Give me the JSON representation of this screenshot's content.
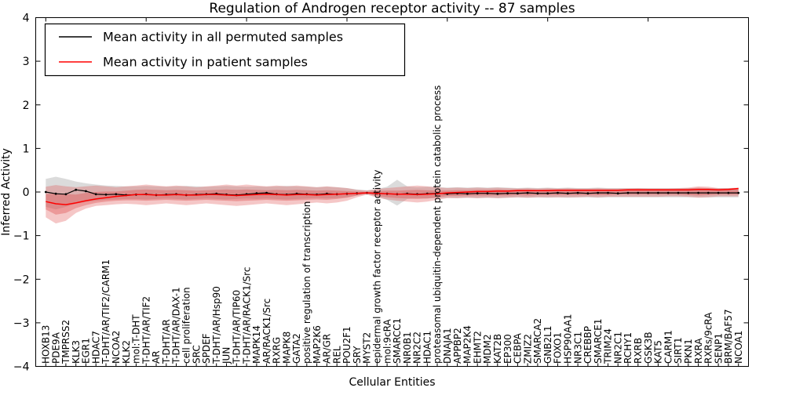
{
  "chart_data": {
    "type": "line",
    "title": "Regulation of Androgen receptor activity -- 87 samples",
    "xlabel": "Cellular Entities",
    "ylabel": "Inferred Activity",
    "ylim": [
      -4,
      4
    ],
    "yticks": [
      -4,
      -3,
      -2,
      -1,
      0,
      1,
      2,
      3,
      4
    ],
    "ytick_labels": [
      "−4",
      "−3",
      "−2",
      "−1",
      "0",
      "1",
      "2",
      "3",
      "4"
    ],
    "top_tick_positions": [
      0,
      10,
      20,
      30,
      40,
      50,
      60,
      70
    ],
    "grid": false,
    "legend_position": "upper-left",
    "legend": [
      {
        "label": "Mean activity in all permuted samples",
        "color": "#000000"
      },
      {
        "label": "Mean activity in patient samples",
        "color": "#ff0000"
      }
    ],
    "colors": {
      "permuted_line": "#000000",
      "patient_line": "#ff0000",
      "gray_band": "#999999",
      "red_band": "#dd4444"
    },
    "categories": [
      "HOXB13",
      "PDE9A",
      "TMPRSS2",
      "KLK3",
      "EGR1",
      "HDAC7",
      "T-DHT/AR/TIF2/CARM1",
      "NCOA2",
      "KLK2",
      "mol:T-DHT",
      "T-DHT/AR/TIF2",
      "AR",
      "T-DHT/AR",
      "T-DHT/AR/DAX-1",
      "cell proliferation",
      "SRC",
      "SPDEF",
      "T-DHT/AR/Hsp90",
      "JUN",
      "T-DHT/AR/TIP60",
      "T-DHT/AR/RACK1/Src",
      "MAPK14",
      "AR/RACK1/Src",
      "RXRG",
      "MAPK8",
      "GATA2",
      "positive regulation of transcription",
      "MAP2K6",
      "AR/GR",
      "REL",
      "POU2F1",
      "SRY",
      "MYST2",
      "epidermal growth factor receptor activity",
      "mol:9cRA",
      "SMARCC1",
      "NR0B1",
      "NR2C2",
      "HDAC1",
      "proteasomal ubiquitin-dependent protein catabolic process",
      "DNAJA1",
      "APPBP2",
      "MAP2K4",
      "EHMT2",
      "MDM2",
      "KAT2B",
      "EP300",
      "CEBPA",
      "ZMIZ2",
      "SMARCA2",
      "GNB2L1",
      "FOXO1",
      "HSP90AA1",
      "NR3C1",
      "CREBBP",
      "SMARCE1",
      "TRIM24",
      "NR2C1",
      "RCHY1",
      "RXRB",
      "GSK3B",
      "KAT5",
      "CARM1",
      "SIRT1",
      "PKN1",
      "RXRA",
      "RXRs/9cRA",
      "SENP1",
      "BRM/BAF57",
      "NCOA1"
    ],
    "series": [
      {
        "name": "Mean activity in all permuted samples",
        "values": [
          0.0,
          -0.04,
          -0.05,
          0.05,
          0.02,
          -0.05,
          -0.06,
          -0.05,
          -0.07,
          -0.06,
          -0.05,
          -0.07,
          -0.06,
          -0.05,
          -0.07,
          -0.06,
          -0.05,
          -0.04,
          -0.06,
          -0.07,
          -0.05,
          -0.03,
          -0.02,
          -0.05,
          -0.06,
          -0.04,
          -0.05,
          -0.06,
          -0.04,
          -0.05,
          -0.04,
          -0.03,
          -0.02,
          -0.03,
          -0.04,
          -0.05,
          -0.04,
          -0.05,
          -0.04,
          -0.03,
          -0.04,
          -0.03,
          -0.04,
          -0.03,
          -0.03,
          -0.04,
          -0.03,
          -0.03,
          -0.02,
          -0.03,
          -0.03,
          -0.02,
          -0.03,
          -0.02,
          -0.03,
          -0.02,
          -0.02,
          -0.03,
          -0.02,
          -0.02,
          -0.02,
          -0.02,
          -0.02,
          -0.02,
          -0.02,
          -0.02,
          -0.02,
          -0.02,
          -0.02,
          -0.02
        ]
      },
      {
        "name": "Mean activity in patient samples",
        "values": [
          -0.22,
          -0.27,
          -0.29,
          -0.25,
          -0.2,
          -0.16,
          -0.13,
          -0.1,
          -0.08,
          -0.06,
          -0.06,
          -0.07,
          -0.07,
          -0.06,
          -0.07,
          -0.07,
          -0.06,
          -0.06,
          -0.07,
          -0.08,
          -0.07,
          -0.06,
          -0.05,
          -0.06,
          -0.07,
          -0.06,
          -0.06,
          -0.07,
          -0.06,
          -0.05,
          -0.04,
          -0.03,
          -0.02,
          -0.03,
          -0.04,
          -0.05,
          -0.05,
          -0.06,
          -0.05,
          -0.04,
          -0.02,
          -0.01,
          0.0,
          0.01,
          0.01,
          0.02,
          0.02,
          0.03,
          0.03,
          0.03,
          0.03,
          0.04,
          0.04,
          0.04,
          0.04,
          0.04,
          0.04,
          0.04,
          0.05,
          0.05,
          0.05,
          0.05,
          0.05,
          0.05,
          0.05,
          0.06,
          0.06,
          0.05,
          0.06,
          0.08
        ]
      }
    ],
    "bands": [
      {
        "name": "permuted-std-band",
        "color": "#999999",
        "opacity": 0.35,
        "high": [
          0.3,
          0.35,
          0.3,
          0.24,
          0.2,
          0.17,
          0.15,
          0.14,
          0.13,
          0.13,
          0.14,
          0.13,
          0.12,
          0.13,
          0.14,
          0.13,
          0.12,
          0.13,
          0.14,
          0.13,
          0.12,
          0.13,
          0.12,
          0.13,
          0.14,
          0.13,
          0.12,
          0.11,
          0.12,
          0.11,
          0.09,
          0.06,
          0.04,
          0.07,
          0.12,
          0.28,
          0.13,
          0.11,
          0.12,
          0.11,
          0.1,
          0.11,
          0.1,
          0.11,
          0.1,
          0.11,
          0.1,
          0.09,
          0.1,
          0.09,
          0.1,
          0.09,
          0.1,
          0.09,
          0.09,
          0.1,
          0.09,
          0.09,
          0.09,
          0.09,
          0.09,
          0.09,
          0.09,
          0.09,
          0.09,
          0.09,
          0.09,
          0.09,
          0.09,
          0.09
        ],
        "low": [
          -0.34,
          -0.4,
          -0.34,
          -0.27,
          -0.23,
          -0.2,
          -0.18,
          -0.17,
          -0.16,
          -0.16,
          -0.17,
          -0.16,
          -0.15,
          -0.16,
          -0.17,
          -0.16,
          -0.15,
          -0.16,
          -0.17,
          -0.16,
          -0.15,
          -0.16,
          -0.15,
          -0.16,
          -0.17,
          -0.16,
          -0.15,
          -0.14,
          -0.15,
          -0.14,
          -0.12,
          -0.08,
          -0.05,
          -0.1,
          -0.18,
          -0.31,
          -0.16,
          -0.14,
          -0.15,
          -0.14,
          -0.13,
          -0.14,
          -0.13,
          -0.14,
          -0.13,
          -0.14,
          -0.13,
          -0.12,
          -0.13,
          -0.12,
          -0.13,
          -0.12,
          -0.13,
          -0.12,
          -0.12,
          -0.13,
          -0.12,
          -0.12,
          -0.12,
          -0.12,
          -0.12,
          -0.12,
          -0.12,
          -0.12,
          -0.12,
          -0.12,
          -0.12,
          -0.12,
          -0.12,
          -0.12
        ]
      },
      {
        "name": "patient-outer-band",
        "color": "#dd4444",
        "opacity": 0.3,
        "high": [
          0.12,
          0.16,
          0.13,
          0.11,
          0.13,
          0.15,
          0.13,
          0.11,
          0.13,
          0.15,
          0.17,
          0.15,
          0.13,
          0.15,
          0.13,
          0.11,
          0.13,
          0.15,
          0.17,
          0.15,
          0.17,
          0.15,
          0.13,
          0.15,
          0.13,
          0.15,
          0.13,
          0.11,
          0.13,
          0.11,
          0.09,
          0.05,
          0.03,
          0.07,
          0.09,
          0.11,
          0.13,
          0.15,
          0.13,
          0.11,
          0.09,
          0.1,
          0.09,
          0.1,
          0.09,
          0.1,
          0.09,
          0.08,
          0.09,
          0.08,
          0.09,
          0.08,
          0.09,
          0.08,
          0.08,
          0.09,
          0.08,
          0.08,
          0.08,
          0.09,
          0.08,
          0.08,
          0.08,
          0.09,
          0.1,
          0.13,
          0.12,
          0.09,
          0.09,
          0.1
        ],
        "low": [
          -0.58,
          -0.72,
          -0.66,
          -0.48,
          -0.38,
          -0.32,
          -0.3,
          -0.28,
          -0.27,
          -0.28,
          -0.3,
          -0.28,
          -0.26,
          -0.28,
          -0.3,
          -0.28,
          -0.26,
          -0.28,
          -0.3,
          -0.32,
          -0.3,
          -0.28,
          -0.26,
          -0.28,
          -0.3,
          -0.28,
          -0.26,
          -0.24,
          -0.26,
          -0.24,
          -0.2,
          -0.12,
          -0.06,
          -0.13,
          -0.17,
          -0.2,
          -0.22,
          -0.24,
          -0.22,
          -0.18,
          -0.14,
          -0.14,
          -0.13,
          -0.14,
          -0.13,
          -0.14,
          -0.13,
          -0.12,
          -0.13,
          -0.12,
          -0.12,
          -0.12,
          -0.12,
          -0.12,
          -0.11,
          -0.12,
          -0.11,
          -0.11,
          -0.11,
          -0.11,
          -0.11,
          -0.11,
          -0.1,
          -0.1,
          -0.11,
          -0.13,
          -0.12,
          -0.1,
          -0.1,
          -0.1
        ]
      },
      {
        "name": "patient-inner-band",
        "color": "#dd4444",
        "opacity": 0.35,
        "high": [
          -0.05,
          -0.03,
          -0.05,
          -0.06,
          -0.02,
          0.0,
          0.01,
          0.01,
          0.03,
          0.05,
          0.06,
          0.05,
          0.04,
          0.05,
          0.04,
          0.03,
          0.04,
          0.05,
          0.06,
          0.05,
          0.06,
          0.05,
          0.04,
          0.05,
          0.04,
          0.05,
          0.04,
          0.03,
          0.04,
          0.03,
          0.02,
          0.01,
          0.0,
          0.02,
          0.03,
          0.03,
          0.04,
          0.05,
          0.04,
          0.03,
          0.03,
          0.04,
          0.04,
          0.05,
          0.05,
          0.06,
          0.05,
          0.06,
          0.06,
          0.05,
          0.06,
          0.06,
          0.06,
          0.06,
          0.06,
          0.06,
          0.06,
          0.06,
          0.07,
          0.07,
          0.07,
          0.07,
          0.07,
          0.07,
          0.08,
          0.1,
          0.09,
          0.07,
          0.08,
          0.09
        ],
        "low": [
          -0.4,
          -0.52,
          -0.48,
          -0.37,
          -0.3,
          -0.25,
          -0.22,
          -0.2,
          -0.19,
          -0.19,
          -0.2,
          -0.19,
          -0.18,
          -0.19,
          -0.2,
          -0.19,
          -0.18,
          -0.19,
          -0.2,
          -0.21,
          -0.2,
          -0.19,
          -0.18,
          -0.19,
          -0.2,
          -0.19,
          -0.18,
          -0.17,
          -0.18,
          -0.16,
          -0.13,
          -0.08,
          -0.04,
          -0.09,
          -0.12,
          -0.14,
          -0.15,
          -0.16,
          -0.15,
          -0.12,
          -0.09,
          -0.09,
          -0.08,
          -0.08,
          -0.08,
          -0.08,
          -0.08,
          -0.07,
          -0.08,
          -0.07,
          -0.07,
          -0.07,
          -0.07,
          -0.07,
          -0.07,
          -0.07,
          -0.07,
          -0.06,
          -0.06,
          -0.06,
          -0.06,
          -0.06,
          -0.06,
          -0.06,
          -0.07,
          -0.08,
          -0.07,
          -0.06,
          -0.06,
          -0.06
        ]
      }
    ]
  }
}
